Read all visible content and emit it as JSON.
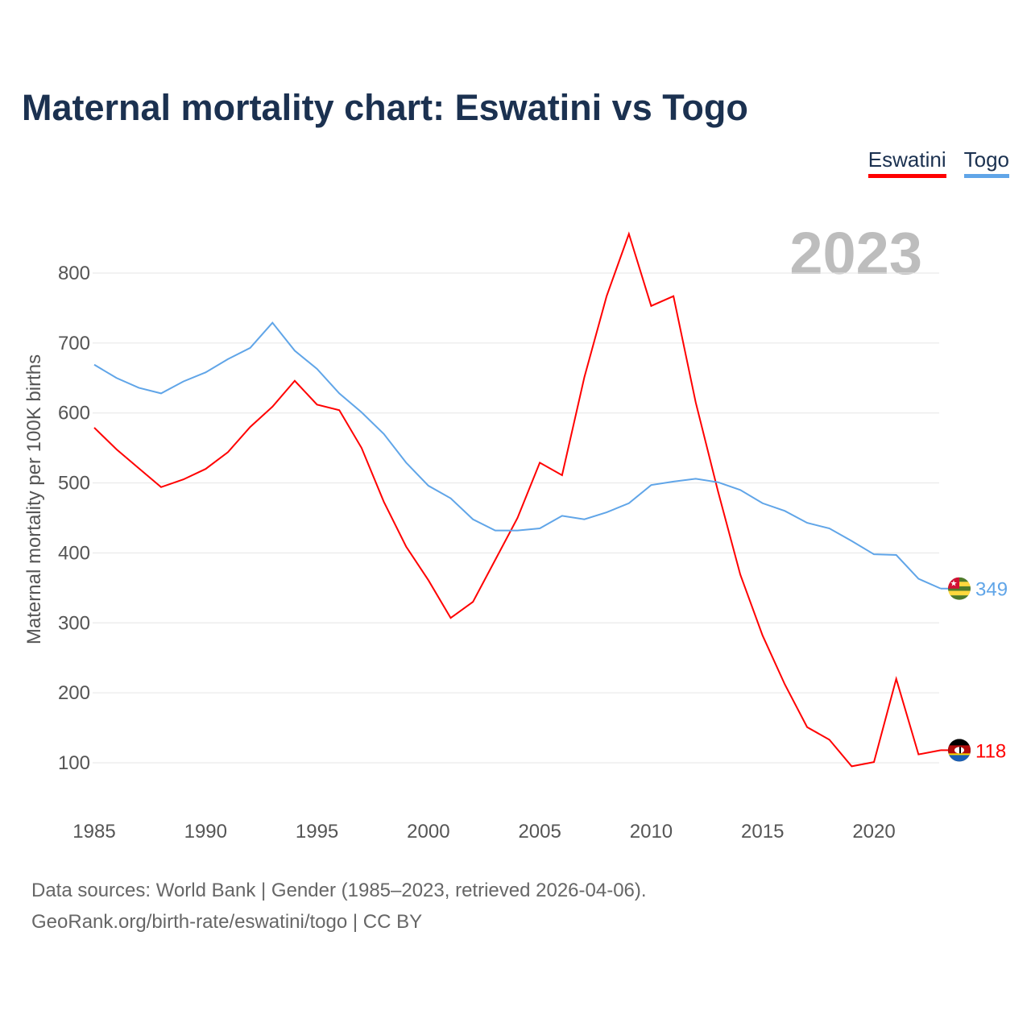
{
  "title": "Maternal mortality chart: Eswatini vs Togo",
  "watermark_year": "2023",
  "footer": {
    "line1": "Data sources: World Bank | Gender (1985–2023, retrieved 2026-04-06).",
    "line2": "GeoRank.org/birth-rate/eswatini/togo | CC BY"
  },
  "chart_data": {
    "type": "line",
    "title": "Maternal mortality chart: Eswatini vs Togo",
    "xlabel": "",
    "ylabel": "Maternal mortality per 100K births",
    "xlim": [
      1985,
      2023
    ],
    "ylim": [
      0,
      880
    ],
    "grid": true,
    "legend_placement": "top-right",
    "x_ticks": [
      1985,
      1990,
      1995,
      2000,
      2005,
      2010,
      2015,
      2020
    ],
    "y_ticks": [
      100,
      200,
      300,
      400,
      500,
      600,
      700,
      800
    ],
    "x": [
      1985,
      1986,
      1987,
      1988,
      1989,
      1990,
      1991,
      1992,
      1993,
      1994,
      1995,
      1996,
      1997,
      1998,
      1999,
      2000,
      2001,
      2002,
      2003,
      2004,
      2005,
      2006,
      2007,
      2008,
      2009,
      2010,
      2011,
      2012,
      2013,
      2014,
      2015,
      2016,
      2017,
      2018,
      2019,
      2020,
      2021,
      2022,
      2023
    ],
    "series": [
      {
        "name": "Eswatini",
        "color": "#ff0000",
        "end_label": "118",
        "values": [
          579,
          548,
          521,
          494,
          505,
          520,
          544,
          580,
          609,
          646,
          612,
          604,
          550,
          473,
          409,
          361,
          307,
          330,
          390,
          450,
          529,
          511,
          651,
          767,
          856,
          753,
          767,
          615,
          488,
          369,
          282,
          212,
          151,
          133,
          95,
          101,
          220,
          112,
          118
        ]
      },
      {
        "name": "Togo",
        "color": "#60a5e8",
        "end_label": "349",
        "values": [
          669,
          650,
          636,
          628,
          645,
          658,
          677,
          693,
          729,
          689,
          663,
          628,
          601,
          570,
          529,
          496,
          478,
          448,
          432,
          432,
          435,
          453,
          448,
          458,
          471,
          497,
          502,
          506,
          501,
          490,
          471,
          460,
          443,
          435,
          417,
          398,
          397,
          363,
          349
        ]
      }
    ]
  }
}
